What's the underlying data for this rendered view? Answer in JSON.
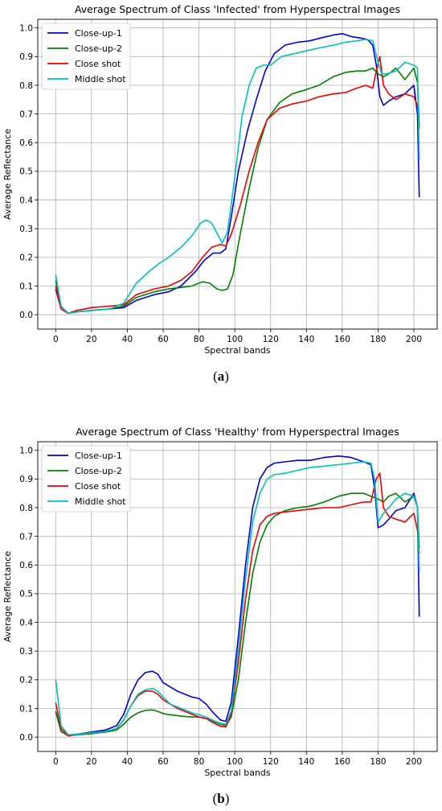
{
  "captions": {
    "a": {
      "open": "(",
      "letter": "a",
      "close": ")"
    },
    "b": {
      "open": "(",
      "letter": "b",
      "close": ")"
    }
  },
  "chart_data": [
    {
      "id": "a",
      "type": "line",
      "title": "Average Spectrum of Class 'Infected' from Hyperspectral Images",
      "xlabel": "Spectral bands",
      "ylabel": "Average Reflectance",
      "xlim": [
        -10,
        213
      ],
      "ylim": [
        -0.05,
        1.03
      ],
      "xticks": [
        0,
        20,
        40,
        60,
        80,
        100,
        120,
        140,
        160,
        180,
        200
      ],
      "yticks": [
        0.0,
        0.1,
        0.2,
        0.3,
        0.4,
        0.5,
        0.6,
        0.7,
        0.8,
        0.9,
        1.0
      ],
      "grid": true,
      "legend_position": "top-left",
      "series": [
        {
          "name": "Close-up-1",
          "color": "#0000dd",
          "x": [
            0,
            3,
            7,
            12,
            20,
            30,
            38,
            45,
            55,
            63,
            70,
            78,
            83,
            88,
            92,
            95,
            98,
            102,
            107,
            112,
            117,
            122,
            128,
            135,
            142,
            148,
            155,
            160,
            165,
            170,
            174,
            177,
            179,
            181,
            183,
            186,
            190,
            195,
            200,
            202,
            203
          ],
          "y": [
            0.09,
            0.02,
            0.005,
            0.01,
            0.015,
            0.02,
            0.025,
            0.05,
            0.07,
            0.08,
            0.1,
            0.15,
            0.19,
            0.215,
            0.215,
            0.23,
            0.34,
            0.5,
            0.64,
            0.75,
            0.85,
            0.91,
            0.94,
            0.95,
            0.955,
            0.965,
            0.975,
            0.98,
            0.97,
            0.965,
            0.96,
            0.94,
            0.87,
            0.76,
            0.73,
            0.745,
            0.76,
            0.77,
            0.8,
            0.7,
            0.41
          ]
        },
        {
          "name": "Close-up-2",
          "color": "#008000",
          "x": [
            0,
            3,
            7,
            12,
            20,
            30,
            38,
            45,
            55,
            63,
            70,
            76,
            82,
            86,
            90,
            93,
            96,
            99,
            103,
            108,
            113,
            118,
            125,
            132,
            140,
            147,
            155,
            162,
            168,
            173,
            177,
            180,
            183,
            186,
            190,
            195,
            200,
            202,
            203
          ],
          "y": [
            0.12,
            0.03,
            0.005,
            0.01,
            0.015,
            0.02,
            0.03,
            0.06,
            0.08,
            0.09,
            0.095,
            0.1,
            0.115,
            0.11,
            0.09,
            0.085,
            0.09,
            0.14,
            0.28,
            0.44,
            0.58,
            0.68,
            0.74,
            0.77,
            0.785,
            0.8,
            0.83,
            0.845,
            0.85,
            0.85,
            0.86,
            0.84,
            0.83,
            0.84,
            0.86,
            0.82,
            0.86,
            0.81,
            0.66
          ]
        },
        {
          "name": "Close shot",
          "color": "#ee0000",
          "x": [
            0,
            3,
            7,
            12,
            20,
            30,
            38,
            45,
            55,
            63,
            70,
            76,
            82,
            87,
            92,
            95,
            98,
            103,
            108,
            113,
            118,
            125,
            132,
            140,
            147,
            155,
            162,
            168,
            173,
            177,
            179,
            181,
            183,
            186,
            190,
            195,
            200,
            202,
            203
          ],
          "y": [
            0.1,
            0.02,
            0.005,
            0.015,
            0.025,
            0.03,
            0.035,
            0.07,
            0.09,
            0.1,
            0.12,
            0.15,
            0.2,
            0.235,
            0.245,
            0.24,
            0.28,
            0.38,
            0.5,
            0.6,
            0.68,
            0.72,
            0.735,
            0.745,
            0.76,
            0.77,
            0.775,
            0.79,
            0.8,
            0.79,
            0.85,
            0.9,
            0.8,
            0.77,
            0.75,
            0.77,
            0.76,
            0.73,
            0.65
          ]
        },
        {
          "name": "Middle shot",
          "color": "#00c0c0",
          "x": [
            0,
            3,
            7,
            12,
            20,
            30,
            38,
            45,
            52,
            58,
            63,
            70,
            76,
            81,
            84,
            87,
            90,
            93,
            96,
            100,
            104,
            108,
            112,
            116,
            120,
            126,
            133,
            140,
            147,
            155,
            162,
            168,
            173,
            177,
            180,
            182,
            185,
            190,
            195,
            200,
            202,
            203
          ],
          "y": [
            0.14,
            0.03,
            0.005,
            0.01,
            0.015,
            0.02,
            0.04,
            0.11,
            0.15,
            0.18,
            0.2,
            0.235,
            0.275,
            0.32,
            0.33,
            0.32,
            0.285,
            0.25,
            0.29,
            0.48,
            0.69,
            0.8,
            0.86,
            0.87,
            0.87,
            0.9,
            0.91,
            0.92,
            0.93,
            0.94,
            0.95,
            0.955,
            0.96,
            0.955,
            0.88,
            0.84,
            0.84,
            0.85,
            0.88,
            0.87,
            0.86,
            0.54
          ]
        }
      ]
    },
    {
      "id": "b",
      "type": "line",
      "title": "Average Spectrum of Class 'Healthy' from Hyperspectral Images",
      "xlabel": "Spectral bands",
      "ylabel": "Average Reflectance",
      "xlim": [
        -10,
        213
      ],
      "ylim": [
        -0.05,
        1.03
      ],
      "xticks": [
        0,
        20,
        40,
        60,
        80,
        100,
        120,
        140,
        160,
        180,
        200
      ],
      "yticks": [
        0.0,
        0.1,
        0.2,
        0.3,
        0.4,
        0.5,
        0.6,
        0.7,
        0.8,
        0.9,
        1.0
      ],
      "grid": true,
      "legend_position": "top-left",
      "series": [
        {
          "name": "Close-up-1",
          "color": "#0000dd",
          "x": [
            0,
            3,
            7,
            12,
            20,
            28,
            34,
            38,
            42,
            46,
            50,
            54,
            57,
            60,
            64,
            68,
            72,
            76,
            80,
            84,
            88,
            92,
            95,
            98,
            102,
            106,
            110,
            114,
            118,
            122,
            128,
            135,
            142,
            150,
            158,
            165,
            172,
            176,
            178,
            180,
            183,
            186,
            190,
            195,
            200,
            202,
            203
          ],
          "y": [
            0.09,
            0.02,
            0.005,
            0.01,
            0.018,
            0.025,
            0.04,
            0.08,
            0.15,
            0.2,
            0.225,
            0.23,
            0.22,
            0.19,
            0.175,
            0.16,
            0.15,
            0.14,
            0.135,
            0.115,
            0.085,
            0.06,
            0.055,
            0.12,
            0.35,
            0.6,
            0.8,
            0.9,
            0.94,
            0.955,
            0.96,
            0.965,
            0.965,
            0.975,
            0.98,
            0.975,
            0.96,
            0.95,
            0.87,
            0.73,
            0.74,
            0.76,
            0.79,
            0.8,
            0.85,
            0.8,
            0.42
          ]
        },
        {
          "name": "Close-up-2",
          "color": "#008000",
          "x": [
            0,
            3,
            7,
            12,
            20,
            28,
            34,
            38,
            42,
            46,
            50,
            54,
            57,
            60,
            64,
            68,
            72,
            76,
            80,
            84,
            88,
            92,
            95,
            98,
            102,
            106,
            110,
            114,
            118,
            122,
            128,
            135,
            142,
            150,
            158,
            165,
            172,
            176,
            180,
            183,
            186,
            190,
            195,
            200,
            202,
            203
          ],
          "y": [
            0.09,
            0.02,
            0.005,
            0.008,
            0.012,
            0.018,
            0.025,
            0.045,
            0.07,
            0.085,
            0.093,
            0.095,
            0.09,
            0.082,
            0.078,
            0.075,
            0.072,
            0.07,
            0.07,
            0.065,
            0.055,
            0.045,
            0.04,
            0.07,
            0.2,
            0.4,
            0.57,
            0.68,
            0.74,
            0.77,
            0.79,
            0.8,
            0.805,
            0.82,
            0.84,
            0.85,
            0.85,
            0.84,
            0.83,
            0.82,
            0.84,
            0.85,
            0.82,
            0.84,
            0.8,
            0.66
          ]
        },
        {
          "name": "Close shot",
          "color": "#ee0000",
          "x": [
            0,
            3,
            7,
            12,
            20,
            28,
            34,
            38,
            42,
            46,
            50,
            54,
            57,
            60,
            64,
            68,
            72,
            76,
            80,
            84,
            88,
            92,
            95,
            98,
            102,
            106,
            110,
            114,
            118,
            122,
            128,
            135,
            142,
            150,
            158,
            165,
            172,
            176,
            179,
            181,
            183,
            186,
            190,
            195,
            200,
            202,
            203
          ],
          "y": [
            0.12,
            0.03,
            0.005,
            0.01,
            0.015,
            0.02,
            0.03,
            0.06,
            0.11,
            0.145,
            0.16,
            0.16,
            0.15,
            0.13,
            0.115,
            0.1,
            0.09,
            0.08,
            0.07,
            0.065,
            0.05,
            0.038,
            0.035,
            0.08,
            0.26,
            0.48,
            0.65,
            0.74,
            0.77,
            0.78,
            0.785,
            0.79,
            0.795,
            0.8,
            0.8,
            0.81,
            0.82,
            0.82,
            0.9,
            0.92,
            0.8,
            0.77,
            0.76,
            0.75,
            0.78,
            0.72,
            0.64
          ]
        },
        {
          "name": "Middle shot",
          "color": "#00c0c0",
          "x": [
            0,
            3,
            7,
            12,
            20,
            28,
            34,
            38,
            42,
            46,
            50,
            54,
            57,
            60,
            64,
            68,
            72,
            76,
            80,
            84,
            88,
            92,
            95,
            98,
            102,
            106,
            110,
            114,
            118,
            122,
            128,
            135,
            142,
            150,
            158,
            165,
            172,
            176,
            178,
            180,
            183,
            186,
            190,
            195,
            200,
            202,
            203
          ],
          "y": [
            0.2,
            0.04,
            0.008,
            0.01,
            0.015,
            0.02,
            0.03,
            0.06,
            0.11,
            0.15,
            0.165,
            0.17,
            0.16,
            0.14,
            0.115,
            0.105,
            0.095,
            0.085,
            0.078,
            0.07,
            0.058,
            0.048,
            0.045,
            0.09,
            0.3,
            0.55,
            0.75,
            0.85,
            0.9,
            0.915,
            0.92,
            0.93,
            0.94,
            0.945,
            0.95,
            0.955,
            0.96,
            0.955,
            0.9,
            0.75,
            0.78,
            0.8,
            0.83,
            0.85,
            0.84,
            0.8,
            0.58
          ]
        }
      ]
    }
  ]
}
